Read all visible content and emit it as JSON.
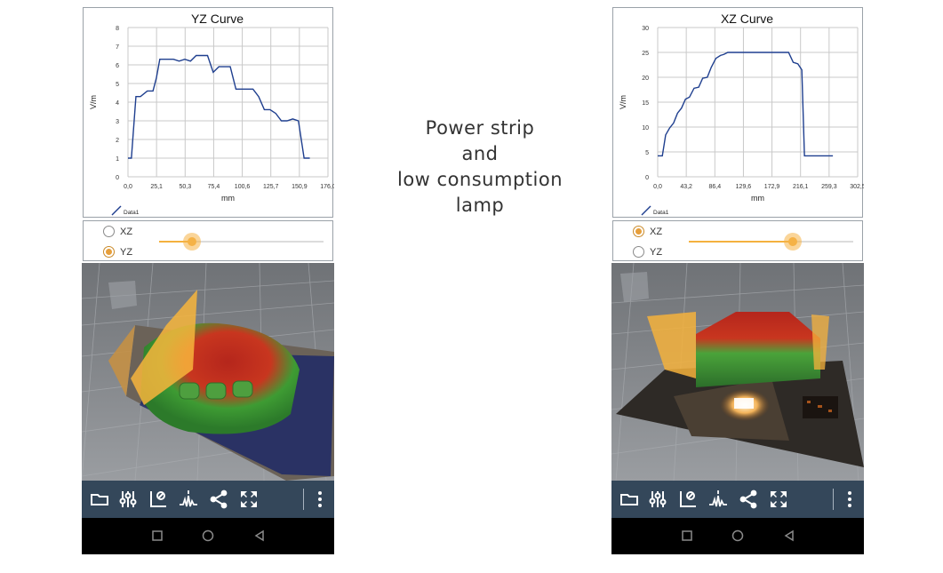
{
  "caption": {
    "lines": [
      "Power strip",
      "and",
      "low consumption",
      "lamp"
    ]
  },
  "left_phone": {
    "radios": [
      {
        "label": "XZ",
        "checked": false
      },
      {
        "label": "YZ",
        "checked": true
      }
    ],
    "slider_value": 0.2,
    "toolbar_icons": [
      "folder-icon",
      "sliders-icon",
      "axis-probe-icon",
      "waveform-icon",
      "share-icon",
      "fullscreen-icon",
      "more-icon"
    ],
    "nav_icons": [
      "square-nav-icon",
      "circle-nav-icon",
      "triangle-back-icon"
    ]
  },
  "right_phone": {
    "radios": [
      {
        "label": "XZ",
        "checked": true
      },
      {
        "label": "YZ",
        "checked": false
      }
    ],
    "slider_value": 0.63,
    "toolbar_icons": [
      "folder-icon",
      "sliders-icon",
      "axis-probe-icon",
      "waveform-icon",
      "share-icon",
      "fullscreen-icon",
      "more-icon"
    ],
    "nav_icons": [
      "square-nav-icon",
      "circle-nav-icon",
      "triangle-back-icon"
    ]
  },
  "chart_data": [
    {
      "type": "line",
      "title": "YZ Curve",
      "xlabel": "mm",
      "ylabel": "V/m",
      "xlim": [
        0,
        176.0
      ],
      "ylim": [
        0,
        8
      ],
      "x_ticks": [
        "0,0",
        "25,1",
        "50,3",
        "75,4",
        "100,6",
        "125,7",
        "150,9",
        "176,0"
      ],
      "y_ticks": [
        "0",
        "1",
        "2",
        "3",
        "4",
        "5",
        "6",
        "7",
        "8"
      ],
      "grid": true,
      "legend_position": "bottom-left",
      "series": [
        {
          "name": "Data1",
          "color": "#1f3f8f",
          "x": [
            0,
            3,
            7,
            11,
            17,
            22,
            25,
            28,
            35,
            40,
            45,
            50,
            55,
            60,
            65,
            70,
            75,
            80,
            85,
            90,
            95,
            100,
            105,
            110,
            115,
            120,
            125,
            130,
            135,
            140,
            145,
            150,
            155,
            160
          ],
          "y": [
            1.0,
            1.0,
            4.3,
            4.3,
            4.6,
            4.6,
            5.3,
            6.3,
            6.3,
            6.3,
            6.2,
            6.3,
            6.2,
            6.5,
            6.5,
            6.5,
            5.6,
            5.9,
            5.9,
            5.9,
            4.7,
            4.7,
            4.7,
            4.7,
            4.3,
            3.6,
            3.6,
            3.4,
            3.0,
            3.0,
            3.1,
            3.0,
            1.0,
            1.0
          ]
        }
      ]
    },
    {
      "type": "line",
      "title": "XZ Curve",
      "xlabel": "mm",
      "ylabel": "V/m",
      "xlim": [
        0,
        302.5
      ],
      "ylim": [
        0,
        30
      ],
      "x_ticks": [
        "0,0",
        "43,2",
        "86,4",
        "129,6",
        "172,9",
        "216,1",
        "259,3",
        "302,5"
      ],
      "y_ticks": [
        "0",
        "5",
        "10",
        "15",
        "20",
        "25",
        "30"
      ],
      "grid": true,
      "legend_position": "bottom-left",
      "series": [
        {
          "name": "Data1",
          "color": "#1f3f8f",
          "x": [
            0,
            7,
            12,
            18,
            24,
            30,
            36,
            42,
            48,
            55,
            62,
            68,
            75,
            81,
            88,
            95,
            100,
            106,
            115,
            122,
            130,
            140,
            150,
            160,
            170,
            180,
            190,
            198,
            205,
            212,
            218,
            222,
            230,
            240,
            250,
            265
          ],
          "y": [
            4.2,
            4.2,
            8.4,
            9.8,
            10.8,
            12.8,
            13.8,
            15.6,
            16.0,
            17.8,
            18.0,
            19.8,
            20.0,
            22.0,
            23.8,
            24.4,
            24.6,
            25.0,
            25.0,
            25.0,
            25.0,
            25.0,
            25.0,
            25.0,
            25.0,
            25.0,
            25.0,
            25.0,
            23.0,
            22.7,
            21.5,
            4.2,
            4.2,
            4.2,
            4.2,
            4.2
          ]
        }
      ]
    }
  ]
}
